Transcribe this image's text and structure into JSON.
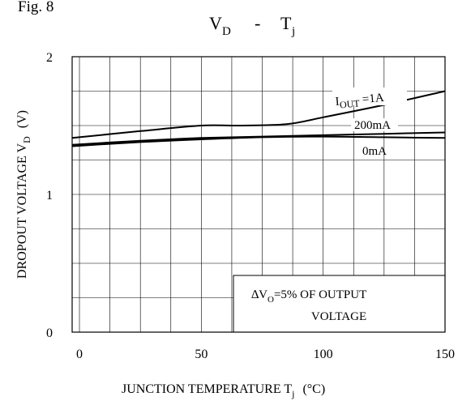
{
  "figure_label": "Fig. 8",
  "title": {
    "main": "V",
    "main_sub": "D",
    "sep": "-",
    "var": "T",
    "var_sub": "j"
  },
  "ylabel": {
    "main": "DROPOUT VOLTAGE V",
    "sub": "D",
    "unit": "(V)"
  },
  "xlabel": {
    "main": "JUNCTION TEMPERATURE T",
    "sub": "j",
    "unit": "(°C)"
  },
  "note": {
    "line1_pre": "∆V",
    "line1_sub": "O",
    "line1_post": "=5% OF OUTPUT",
    "line2": "VOLTAGE"
  },
  "series_labels": {
    "one_amp": {
      "pre": "I",
      "sub": "OUT",
      "post": " =1A"
    },
    "two_hundred": "200mA",
    "zero": "0mA"
  },
  "chart_data": {
    "type": "line",
    "xlim": [
      -3,
      150
    ],
    "ylim": [
      0,
      2
    ],
    "x_ticks": [
      0,
      50,
      100,
      150
    ],
    "x_tick_labels": [
      "0",
      "50",
      "100",
      "150"
    ],
    "y_ticks": [
      0,
      1,
      2
    ],
    "y_tick_labels": [
      "0",
      "1",
      "2"
    ],
    "grid": true,
    "series": [
      {
        "name": "IOUT =1A",
        "x": [
          -3,
          25,
          50,
          65,
          85,
          100,
          125,
          150
        ],
        "values": [
          1.41,
          1.46,
          1.5,
          1.5,
          1.51,
          1.56,
          1.65,
          1.75
        ]
      },
      {
        "name": "200mA",
        "x": [
          -3,
          25,
          50,
          75,
          100,
          125,
          150
        ],
        "values": [
          1.36,
          1.39,
          1.41,
          1.42,
          1.43,
          1.44,
          1.45
        ]
      },
      {
        "name": "0mA",
        "x": [
          -3,
          25,
          50,
          75,
          100,
          125,
          150
        ],
        "values": [
          1.35,
          1.38,
          1.4,
          1.415,
          1.42,
          1.415,
          1.41
        ]
      }
    ]
  }
}
